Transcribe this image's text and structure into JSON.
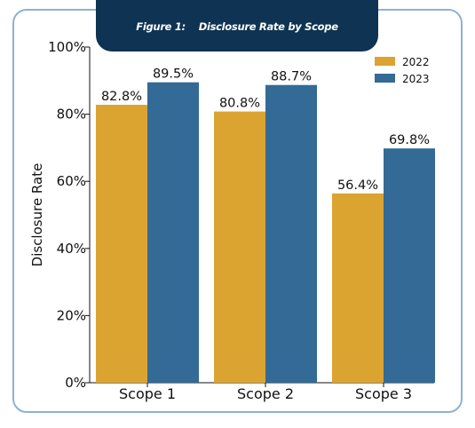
{
  "figure": {
    "label": "Figure 1:",
    "title": "Disclosure Rate by Scope"
  },
  "colors": {
    "frame_border": "#8fb1d0",
    "title_bg": "#0f3352",
    "series_2022": "#dba431",
    "series_2023": "#336a96"
  },
  "chart_data": {
    "type": "bar",
    "title": "Disclosure Rate by Scope",
    "xlabel": "",
    "ylabel": "Disclosure Rate",
    "categories": [
      "Scope 1",
      "Scope 2",
      "Scope 3"
    ],
    "series": [
      {
        "name": "2022",
        "color": "#dba431",
        "values": [
          82.8,
          80.8,
          56.4
        ],
        "labels": [
          "82.8%",
          "80.8%",
          "56.4%"
        ]
      },
      {
        "name": "2023",
        "color": "#336a96",
        "values": [
          89.5,
          88.7,
          69.8
        ],
        "labels": [
          "89.5%",
          "88.7%",
          "69.8%"
        ]
      }
    ],
    "ylim": [
      0,
      100
    ],
    "yticks": [
      0,
      20,
      40,
      60,
      80,
      100
    ],
    "ytick_labels": [
      "0%",
      "20%",
      "40%",
      "60%",
      "80%",
      "100%"
    ],
    "grid": false,
    "legend_position": "top-right"
  }
}
